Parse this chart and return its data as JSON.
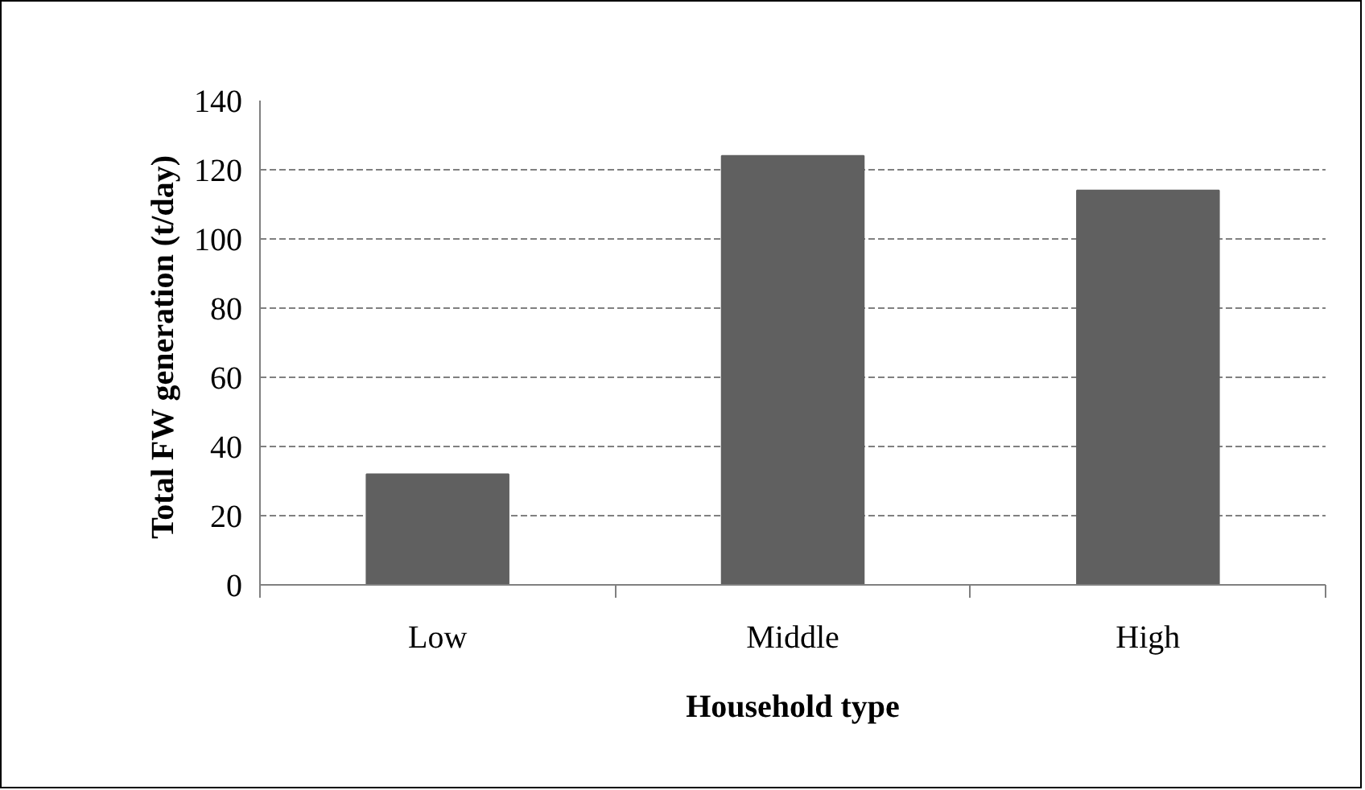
{
  "chart_data": {
    "type": "bar",
    "xlabel": "Household type",
    "ylabel": "Total FW generation  (t/day)",
    "categories": [
      "Low",
      "Middle",
      "High"
    ],
    "values": [
      32,
      124,
      114
    ],
    "color": "#606060",
    "ylim": [
      0,
      140
    ],
    "yticks": [
      0,
      20,
      40,
      60,
      80,
      100,
      120,
      140
    ],
    "grid": "y"
  }
}
